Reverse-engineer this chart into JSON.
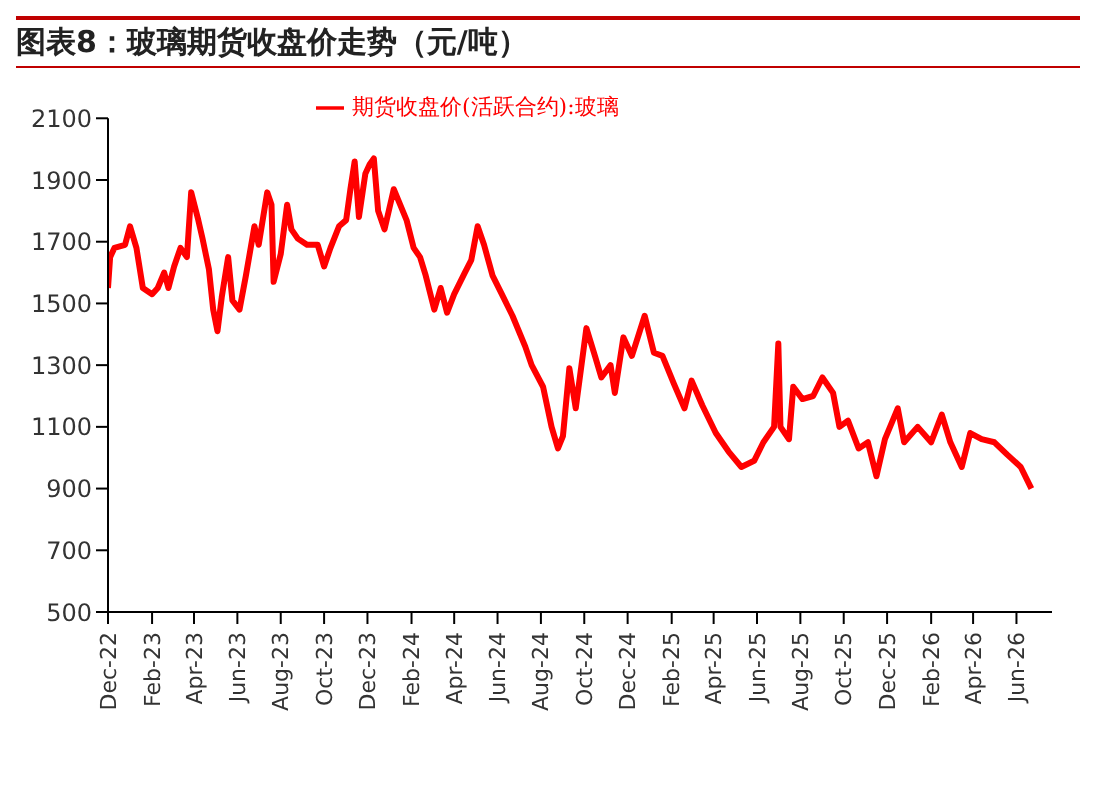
{
  "chart_data": {
    "type": "line",
    "title": "图表8：玻璃期货收盘价走势（元/吨）",
    "x": [
      "2022-12-01",
      "2022-12-04",
      "2022-12-10",
      "2022-12-25",
      "2023-01-01",
      "2023-01-10",
      "2023-01-19",
      "2023-02-01",
      "2023-02-09",
      "2023-02-18",
      "2023-02-24",
      "2023-03-04",
      "2023-03-13",
      "2023-03-22",
      "2023-03-28",
      "2023-04-07",
      "2023-04-13",
      "2023-04-22",
      "2023-04-28",
      "2023-05-04",
      "2023-05-10",
      "2023-05-19",
      "2023-05-25",
      "2023-06-04",
      "2023-06-13",
      "2023-06-25",
      "2023-07-01",
      "2023-07-13",
      "2023-07-19",
      "2023-07-22",
      "2023-08-01",
      "2023-08-10",
      "2023-08-16",
      "2023-08-25",
      "2023-09-07",
      "2023-09-22",
      "2023-10-01",
      "2023-10-10",
      "2023-10-22",
      "2023-11-01",
      "2023-11-07",
      "2023-11-13",
      "2023-11-19",
      "2023-11-28",
      "2023-12-04",
      "2023-12-10",
      "2023-12-16",
      "2023-12-25",
      "2024-01-07",
      "2024-01-16",
      "2024-01-25",
      "2024-02-04",
      "2024-02-13",
      "2024-02-21",
      "2024-03-04",
      "2024-03-13",
      "2024-03-22",
      "2024-04-01",
      "2024-04-16",
      "2024-04-25",
      "2024-05-04",
      "2024-05-13",
      "2024-05-25",
      "2024-06-07",
      "2024-06-22",
      "2024-07-10",
      "2024-07-19",
      "2024-08-04",
      "2024-08-16",
      "2024-08-25",
      "2024-09-01",
      "2024-09-10",
      "2024-09-19",
      "2024-10-04",
      "2024-10-16",
      "2024-10-25",
      "2024-11-07",
      "2024-11-13",
      "2024-11-25",
      "2024-12-07",
      "2024-12-25",
      "2025-01-07",
      "2025-01-19",
      "2025-02-04",
      "2025-02-19",
      "2025-03-01",
      "2025-03-16",
      "2025-04-04",
      "2025-04-22",
      "2025-05-10",
      "2025-05-28",
      "2025-06-10",
      "2025-06-25",
      "2025-07-01",
      "2025-07-04",
      "2025-07-16",
      "2025-07-22",
      "2025-08-04",
      "2025-08-19",
      "2025-09-01",
      "2025-09-16",
      "2025-09-25",
      "2025-10-07",
      "2025-10-22",
      "2025-11-04",
      "2025-11-16",
      "2025-11-28",
      "2025-12-16",
      "2025-12-25",
      "2026-01-13",
      "2026-02-01",
      "2026-02-16",
      "2026-02-28",
      "2026-03-16",
      "2026-03-28",
      "2026-04-13",
      "2026-05-01",
      "2026-05-19",
      "2026-06-07",
      "2026-06-22"
    ],
    "series": [
      {
        "name": "期货收盘价(活跃合约):玻璃",
        "color": "#ff0000",
        "values": [
          1550,
          1650,
          1680,
          1690,
          1750,
          1680,
          1550,
          1530,
          1550,
          1600,
          1550,
          1620,
          1680,
          1650,
          1860,
          1770,
          1710,
          1610,
          1480,
          1410,
          1520,
          1650,
          1510,
          1480,
          1590,
          1750,
          1690,
          1860,
          1820,
          1570,
          1660,
          1820,
          1740,
          1710,
          1690,
          1690,
          1620,
          1680,
          1750,
          1770,
          1870,
          1960,
          1780,
          1920,
          1950,
          1970,
          1800,
          1740,
          1870,
          1820,
          1770,
          1680,
          1650,
          1590,
          1480,
          1550,
          1470,
          1530,
          1600,
          1640,
          1750,
          1690,
          1590,
          1530,
          1460,
          1360,
          1300,
          1230,
          1100,
          1030,
          1070,
          1290,
          1160,
          1420,
          1330,
          1260,
          1300,
          1210,
          1390,
          1330,
          1460,
          1340,
          1330,
          1240,
          1160,
          1250,
          1170,
          1080,
          1020,
          970,
          990,
          1050,
          1100,
          1370,
          1100,
          1060,
          1230,
          1190,
          1200,
          1260,
          1210,
          1100,
          1120,
          1030,
          1050,
          940,
          1060,
          1160,
          1050,
          1100,
          1050,
          1140,
          1050,
          970,
          1080,
          1060,
          1050,
          1010,
          970,
          900
        ]
      }
    ],
    "xlim": [
      "2022-12-01",
      "2026-07-21"
    ],
    "xticks": [
      {
        "value": "2022-12",
        "label": "Dec-22"
      },
      {
        "value": "2023-02",
        "label": "Feb-23"
      },
      {
        "value": "2023-04",
        "label": "Apr-23"
      },
      {
        "value": "2023-06",
        "label": "Jun-23"
      },
      {
        "value": "2023-08",
        "label": "Aug-23"
      },
      {
        "value": "2023-10",
        "label": "Oct-23"
      },
      {
        "value": "2023-12",
        "label": "Dec-23"
      },
      {
        "value": "2024-02",
        "label": "Feb-24"
      },
      {
        "value": "2024-04",
        "label": "Apr-24"
      },
      {
        "value": "2024-06",
        "label": "Jun-24"
      },
      {
        "value": "2024-08",
        "label": "Aug-24"
      },
      {
        "value": "2024-10",
        "label": "Oct-24"
      },
      {
        "value": "2024-12",
        "label": "Dec-24"
      },
      {
        "value": "2025-02",
        "label": "Feb-25"
      },
      {
        "value": "2025-04",
        "label": "Apr-25"
      },
      {
        "value": "2025-06",
        "label": "Jun-25"
      },
      {
        "value": "2025-08",
        "label": "Aug-25"
      },
      {
        "value": "2025-10",
        "label": "Oct-25"
      },
      {
        "value": "2025-12",
        "label": "Dec-25"
      },
      {
        "value": "2026-02",
        "label": "Feb-26"
      },
      {
        "value": "2026-04",
        "label": "Apr-26"
      },
      {
        "value": "2026-06",
        "label": "Jun-26"
      }
    ],
    "ylim": [
      500,
      2100
    ],
    "yticks": [
      500,
      700,
      900,
      1100,
      1300,
      1500,
      1700,
      1900,
      2100
    ],
    "grid": false,
    "legend": "top",
    "marker": "none",
    "line_style": "solid"
  }
}
